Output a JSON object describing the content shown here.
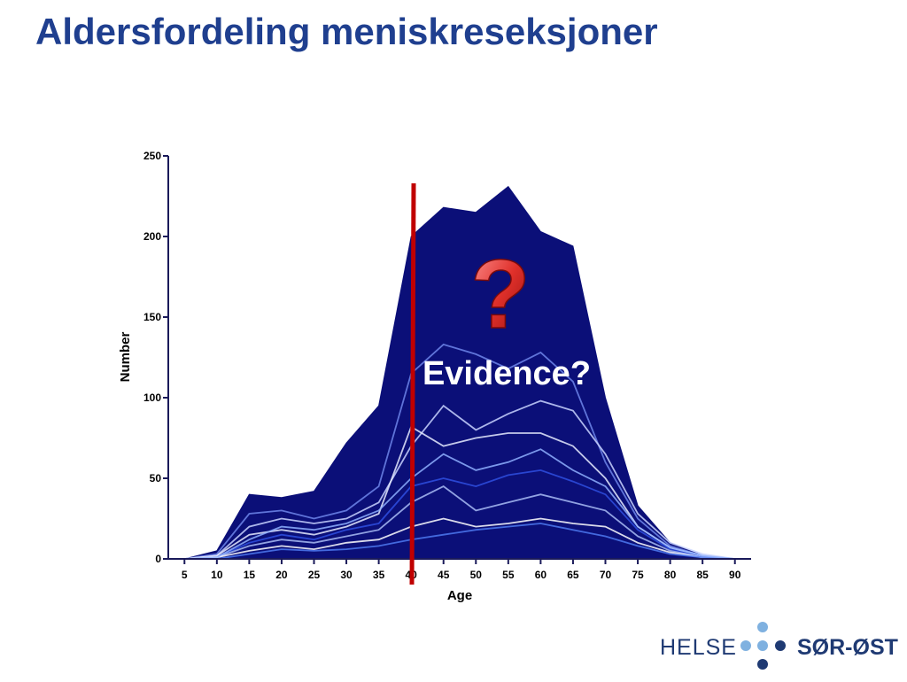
{
  "title": "Aldersfordeling meniskreseksjoner",
  "chart_data": {
    "type": "area",
    "x": [
      5,
      10,
      15,
      20,
      25,
      30,
      35,
      40,
      45,
      50,
      55,
      60,
      65,
      70,
      75,
      80,
      85,
      90
    ],
    "xlim": [
      2.5,
      92.5
    ],
    "xticks": [
      5,
      10,
      15,
      20,
      25,
      30,
      35,
      40,
      45,
      50,
      55,
      60,
      65,
      70,
      75,
      80,
      85,
      90
    ],
    "ylim": [
      0,
      250
    ],
    "yticks": [
      0,
      50,
      100,
      150,
      200,
      250
    ],
    "xlabel": "Age",
    "ylabel": "Number",
    "annotations": [
      "?",
      "Evidence?"
    ],
    "series": [
      {
        "color": "#0b0f78",
        "fill": true,
        "values": [
          0,
          5,
          40,
          38,
          42,
          72,
          95,
          200,
          218,
          215,
          231,
          203,
          194,
          100,
          33,
          10,
          2,
          0
        ]
      },
      {
        "color": "#6f86ea",
        "values": [
          0,
          3,
          28,
          30,
          25,
          30,
          45,
          115,
          133,
          127,
          118,
          128,
          110,
          60,
          25,
          8,
          2,
          0
        ]
      },
      {
        "color": "#c9d3ff",
        "values": [
          0,
          2,
          20,
          25,
          22,
          25,
          35,
          70,
          95,
          80,
          90,
          98,
          92,
          65,
          28,
          10,
          3,
          0
        ]
      },
      {
        "color": "#e6ebff",
        "values": [
          0,
          2,
          15,
          18,
          15,
          20,
          28,
          82,
          70,
          75,
          78,
          78,
          70,
          50,
          20,
          7,
          2,
          0
        ]
      },
      {
        "color": "#2f4fe0",
        "values": [
          0,
          1,
          10,
          15,
          12,
          18,
          22,
          45,
          50,
          45,
          52,
          55,
          48,
          40,
          18,
          6,
          1,
          0
        ]
      },
      {
        "color": "#a9bcf5",
        "values": [
          0,
          1,
          8,
          12,
          10,
          14,
          18,
          35,
          45,
          30,
          35,
          40,
          35,
          30,
          14,
          5,
          1,
          0
        ]
      },
      {
        "color": "#ffffff",
        "values": [
          0,
          1,
          5,
          8,
          6,
          10,
          12,
          20,
          25,
          20,
          22,
          25,
          22,
          20,
          10,
          4,
          1,
          0
        ]
      },
      {
        "color": "#4d79f0",
        "values": [
          0,
          0,
          3,
          6,
          5,
          6,
          8,
          12,
          15,
          18,
          20,
          22,
          18,
          14,
          8,
          3,
          1,
          0
        ]
      },
      {
        "color": "#8fb0ff",
        "values": [
          0,
          1,
          12,
          20,
          18,
          22,
          30,
          50,
          65,
          55,
          60,
          68,
          55,
          45,
          20,
          7,
          2,
          0
        ]
      }
    ]
  },
  "logo": {
    "left": "HELSE",
    "right": "SØR-ØST"
  }
}
